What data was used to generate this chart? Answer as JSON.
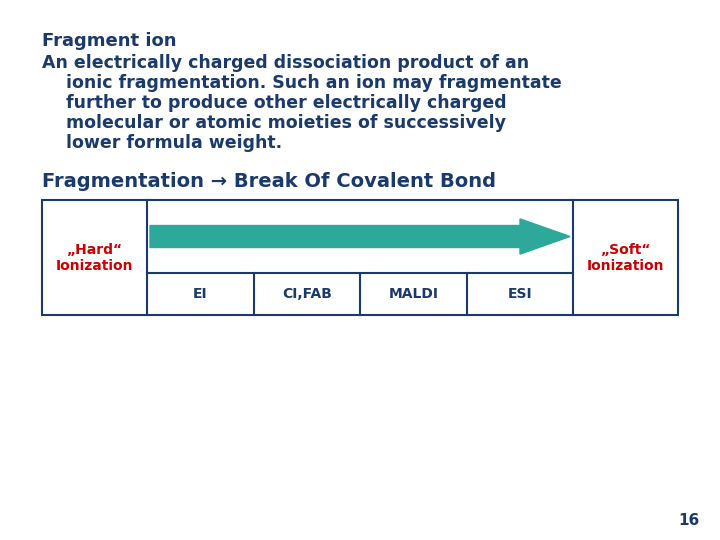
{
  "background_color": "#ffffff",
  "text_color": "#1a3a6b",
  "label_color": "#cc0000",
  "arrow_color": "#2da89a",
  "title_line1": "Fragment ion",
  "title_line2": "An electrically charged dissociation product of an",
  "body_lines": [
    "    ionic fragmentation. Such an ion may fragmentate",
    "    further to produce other electrically charged",
    "    molecular or atomic moieties of successively",
    "    lower formula weight."
  ],
  "subtitle": "Fragmentation → Break Of Covalent Bond",
  "hard_label_line1": "„Hard“",
  "hard_label_line2": "Ionization",
  "soft_label_line1": "„Soft“",
  "soft_label_line2": "Ionization",
  "methods": [
    "EI",
    "CI,FAB",
    "MALDI",
    "ESI"
  ],
  "page_number": "16",
  "font_size_title": 13,
  "font_size_body": 12.5,
  "font_size_subtitle": 14,
  "font_size_labels": 10,
  "font_size_methods": 10,
  "font_size_page": 11
}
